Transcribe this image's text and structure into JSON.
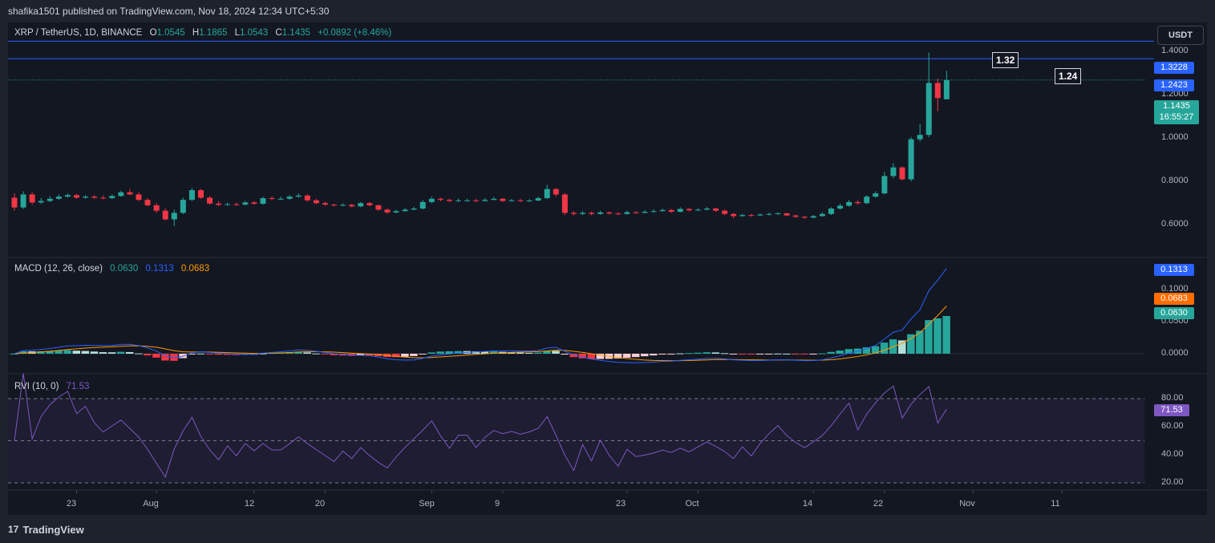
{
  "header": {
    "published_text": "shafika1501 published on TradingView.com, Nov 18, 2024 12:34 UTC+5:30"
  },
  "footer": {
    "brand": "TradingView",
    "logo_glyph": "17"
  },
  "toolbar": {
    "currency": "USDT"
  },
  "symbol_legend": {
    "symbol": "XRP / TetherUS, 1D, BINANCE",
    "o_label": "O",
    "o_value": "1.0545",
    "h_label": "H",
    "h_value": "1.1865",
    "l_label": "L",
    "l_value": "1.0543",
    "c_label": "C",
    "c_value": "1.1435",
    "change": "+0.0892 (+8.46%)"
  },
  "macd_legend": {
    "label": "MACD (12, 26, close)",
    "hist": "0.0630",
    "macd": "0.1313",
    "signal": "0.0683"
  },
  "rvi_legend": {
    "label": "RVI (10, 0)",
    "value": "71.53"
  },
  "price_axis": {
    "ticks": [
      "1.4000",
      "1.2000",
      "1.0000",
      "0.8000",
      "0.6000"
    ],
    "line_upper": "1.3228",
    "line_lower": "1.2423",
    "last_price": "1.1435",
    "countdown": "16:55:27",
    "callout_upper": "1.32",
    "callout_lower": "1.24"
  },
  "macd_axis": {
    "ticks": [
      "0.1000",
      "0.0500",
      "0.0000"
    ],
    "tag_macd": "0.1313",
    "tag_signal": "0.0683",
    "tag_hist": "0.0630"
  },
  "rvi_axis": {
    "ticks": [
      "80.00",
      "60.00",
      "40.00",
      "20.00"
    ],
    "tag_value": "71.53"
  },
  "colors": {
    "up": "#26a69a",
    "down": "#f23645",
    "macd": "#2962ff",
    "signal": "#ff9800",
    "rvi": "#7e57c2",
    "hline": "#2962ff",
    "hist_up_light": "#b2dfdb",
    "hist_down_light": "#ffcdd2"
  },
  "chart_data": {
    "type": "candlestick",
    "title": "XRP / TetherUS, 1D, BINANCE",
    "x_tick_labels": [
      {
        "label": "23",
        "date": "2024-07-23"
      },
      {
        "label": "Aug",
        "date": "2024-08-01"
      },
      {
        "label": "12",
        "date": "2024-08-12"
      },
      {
        "label": "20",
        "date": "2024-08-20"
      },
      {
        "label": "Sep",
        "date": "2024-09-01"
      },
      {
        "label": "9",
        "date": "2024-09-09"
      },
      {
        "label": "23",
        "date": "2024-09-23"
      },
      {
        "label": "Oct",
        "date": "2024-10-01"
      },
      {
        "label": "14",
        "date": "2024-10-14"
      },
      {
        "label": "22",
        "date": "2024-10-22"
      },
      {
        "label": "Nov",
        "date": "2024-11-01"
      },
      {
        "label": "11",
        "date": "2024-11-11"
      }
    ],
    "start_date": "2024-07-16",
    "price_ylim": [
      0.45,
      1.45
    ],
    "horizontal_lines": [
      1.3228,
      1.2423
    ],
    "close": [
      0.555,
      0.615,
      0.578,
      0.585,
      0.595,
      0.605,
      0.612,
      0.6,
      0.605,
      0.6,
      0.598,
      0.608,
      0.625,
      0.615,
      0.59,
      0.565,
      0.54,
      0.5,
      0.53,
      0.59,
      0.635,
      0.6,
      0.573,
      0.567,
      0.57,
      0.568,
      0.578,
      0.572,
      0.598,
      0.595,
      0.595,
      0.605,
      0.61,
      0.588,
      0.575,
      0.568,
      0.564,
      0.567,
      0.56,
      0.575,
      0.565,
      0.545,
      0.532,
      0.538,
      0.545,
      0.55,
      0.58,
      0.595,
      0.59,
      0.585,
      0.588,
      0.588,
      0.585,
      0.59,
      0.595,
      0.585,
      0.588,
      0.585,
      0.587,
      0.598,
      0.64,
      0.615,
      0.53,
      0.525,
      0.53,
      0.525,
      0.532,
      0.527,
      0.525,
      0.533,
      0.53,
      0.535,
      0.538,
      0.543,
      0.535,
      0.548,
      0.542,
      0.545,
      0.55,
      0.54,
      0.525,
      0.515,
      0.52,
      0.518,
      0.522,
      0.525,
      0.528,
      0.518,
      0.512,
      0.508,
      0.515,
      0.525,
      0.55,
      0.563,
      0.58,
      0.575,
      0.605,
      0.62,
      0.7,
      0.74,
      0.685,
      0.87,
      0.89,
      1.13,
      1.06,
      1.1435
    ],
    "open": [
      0.6,
      0.555,
      0.615,
      0.578,
      0.585,
      0.595,
      0.605,
      0.612,
      0.6,
      0.605,
      0.6,
      0.598,
      0.608,
      0.625,
      0.615,
      0.59,
      0.565,
      0.54,
      0.5,
      0.53,
      0.59,
      0.635,
      0.6,
      0.573,
      0.567,
      0.57,
      0.568,
      0.578,
      0.572,
      0.598,
      0.595,
      0.595,
      0.605,
      0.61,
      0.588,
      0.575,
      0.568,
      0.564,
      0.567,
      0.56,
      0.575,
      0.565,
      0.545,
      0.532,
      0.538,
      0.545,
      0.55,
      0.58,
      0.595,
      0.59,
      0.585,
      0.588,
      0.588,
      0.585,
      0.59,
      0.595,
      0.585,
      0.588,
      0.585,
      0.587,
      0.598,
      0.64,
      0.615,
      0.53,
      0.525,
      0.53,
      0.525,
      0.532,
      0.527,
      0.525,
      0.533,
      0.53,
      0.535,
      0.538,
      0.543,
      0.535,
      0.548,
      0.542,
      0.545,
      0.55,
      0.54,
      0.525,
      0.515,
      0.52,
      0.518,
      0.522,
      0.525,
      0.528,
      0.518,
      0.512,
      0.508,
      0.515,
      0.525,
      0.55,
      0.563,
      0.58,
      0.575,
      0.605,
      0.62,
      0.7,
      0.74,
      0.685,
      0.87,
      0.89,
      1.13,
      1.0545
    ],
    "high": [
      0.62,
      0.63,
      0.625,
      0.598,
      0.606,
      0.615,
      0.62,
      0.618,
      0.612,
      0.612,
      0.61,
      0.615,
      0.632,
      0.64,
      0.625,
      0.598,
      0.575,
      0.55,
      0.545,
      0.6,
      0.645,
      0.64,
      0.608,
      0.585,
      0.578,
      0.578,
      0.586,
      0.585,
      0.605,
      0.606,
      0.605,
      0.612,
      0.62,
      0.615,
      0.595,
      0.582,
      0.572,
      0.574,
      0.572,
      0.58,
      0.58,
      0.568,
      0.55,
      0.545,
      0.552,
      0.558,
      0.59,
      0.605,
      0.6,
      0.595,
      0.596,
      0.596,
      0.594,
      0.598,
      0.604,
      0.598,
      0.594,
      0.594,
      0.594,
      0.605,
      0.66,
      0.645,
      0.62,
      0.538,
      0.538,
      0.536,
      0.54,
      0.537,
      0.533,
      0.54,
      0.538,
      0.543,
      0.546,
      0.55,
      0.548,
      0.556,
      0.552,
      0.552,
      0.558,
      0.554,
      0.544,
      0.53,
      0.526,
      0.525,
      0.528,
      0.531,
      0.533,
      0.53,
      0.522,
      0.516,
      0.52,
      0.533,
      0.556,
      0.572,
      0.59,
      0.588,
      0.612,
      0.63,
      0.72,
      0.76,
      0.745,
      0.88,
      0.94,
      1.27,
      1.15,
      1.1865
    ],
    "low": [
      0.54,
      0.548,
      0.57,
      0.572,
      0.58,
      0.59,
      0.6,
      0.595,
      0.596,
      0.596,
      0.593,
      0.594,
      0.604,
      0.612,
      0.585,
      0.56,
      0.53,
      0.495,
      0.47,
      0.525,
      0.585,
      0.595,
      0.568,
      0.562,
      0.563,
      0.563,
      0.565,
      0.568,
      0.568,
      0.588,
      0.59,
      0.591,
      0.6,
      0.582,
      0.57,
      0.563,
      0.559,
      0.56,
      0.555,
      0.556,
      0.56,
      0.54,
      0.526,
      0.528,
      0.536,
      0.542,
      0.545,
      0.575,
      0.583,
      0.58,
      0.58,
      0.582,
      0.58,
      0.582,
      0.588,
      0.58,
      0.582,
      0.58,
      0.58,
      0.584,
      0.594,
      0.605,
      0.52,
      0.518,
      0.52,
      0.519,
      0.522,
      0.522,
      0.52,
      0.522,
      0.525,
      0.528,
      0.531,
      0.535,
      0.53,
      0.532,
      0.536,
      0.538,
      0.542,
      0.535,
      0.52,
      0.505,
      0.512,
      0.512,
      0.515,
      0.518,
      0.521,
      0.514,
      0.506,
      0.502,
      0.505,
      0.512,
      0.52,
      0.545,
      0.558,
      0.568,
      0.57,
      0.6,
      0.615,
      0.69,
      0.68,
      0.675,
      0.86,
      0.88,
      1.0,
      1.0543
    ]
  }
}
